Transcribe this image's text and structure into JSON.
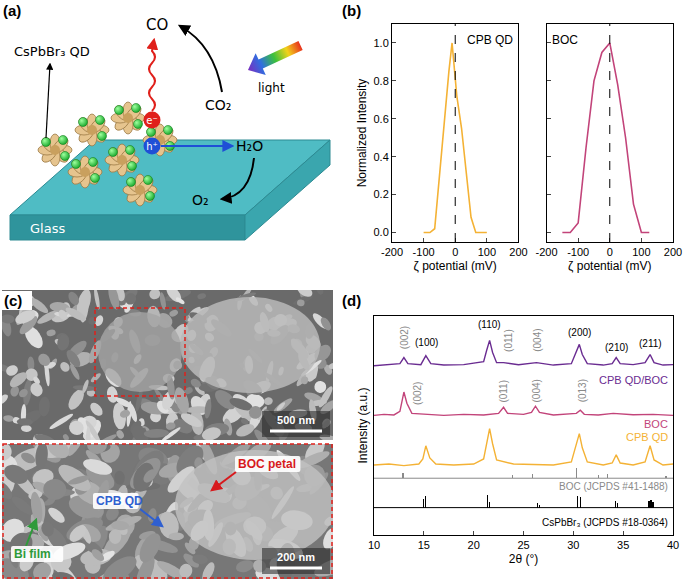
{
  "panel_a": {
    "label": "(a)",
    "texts": {
      "qd": "CsPbBr₃ QD",
      "co": "CO",
      "co2": "CO₂",
      "light": "light",
      "electron": "e⁻",
      "hole": "h⁺",
      "h2o": "H₂O",
      "o2": "O₂",
      "glass": "Glass"
    }
  },
  "chart_data": [
    {
      "type": "line",
      "panel_label": "(b)",
      "title": "CPB QD",
      "x": [
        -100,
        -80,
        -65,
        -50,
        -35,
        -20,
        -10,
        5,
        20,
        35,
        50,
        65,
        80,
        100
      ],
      "values": [
        0,
        0,
        0.02,
        0.3,
        0.55,
        0.85,
        1.0,
        0.72,
        0.55,
        0.32,
        0.08,
        0,
        0,
        0
      ],
      "color": "#f4b235",
      "xlabel": "ζ potential (mV)",
      "ylabel": "Normalized Intensity",
      "xlim": [
        -200,
        200
      ],
      "xticks": [
        -200,
        -100,
        0,
        100,
        200
      ],
      "ylim": [
        -0.05,
        1.1
      ],
      "yticks": [
        {
          "value": 0,
          "label": "0.0"
        },
        0.2,
        0.4,
        0.6,
        0.8,
        {
          "value": 1,
          "label": "1.0"
        }
      ],
      "ref_lines": [
        {
          "x": 0,
          "line_style": "dashed"
        }
      ]
    },
    {
      "type": "line",
      "title": "BOC",
      "x": [
        -150,
        -125,
        -100,
        -75,
        -50,
        -25,
        0,
        25,
        50,
        75,
        100,
        125
      ],
      "values": [
        0,
        0,
        0.05,
        0.45,
        0.8,
        0.95,
        1.0,
        0.78,
        0.5,
        0.15,
        0,
        0
      ],
      "color": "#c2447a",
      "xlabel": "ζ potential (mV)",
      "xlim": [
        -200,
        200
      ],
      "xticks": [
        -200,
        -100,
        0,
        100,
        200
      ],
      "ylim": [
        -0.05,
        1.1
      ],
      "yticks": [
        0,
        0.2,
        0.4,
        0.6,
        0.8,
        1
      ],
      "tick_labels": "x",
      "ref_lines": [
        {
          "x": 0,
          "line_style": "dashed"
        }
      ]
    },
    {
      "type": "line",
      "panel_label": "(d)",
      "xlabel": "2θ (°)",
      "ylabel": "Intensity (a.u.)",
      "xlim": [
        10,
        40
      ],
      "xticks": [
        10,
        15,
        20,
        25,
        30,
        35,
        40
      ],
      "ylim": [
        0,
        10.8
      ],
      "tick_labels": "x",
      "series": [
        {
          "name": "CPB QD/BOC",
          "color": "#6a2c91",
          "x": [
            10,
            11.5,
            12.6,
            13.0,
            13.4,
            14.7,
            15.2,
            15.7,
            17,
            19,
            21.0,
            21.3,
            21.6,
            21.9,
            22.3,
            23.0,
            24.5,
            26.3,
            28,
            29.8,
            30.3,
            30.6,
            30.9,
            31.4,
            33,
            33.9,
            34.3,
            34.7,
            36,
            37.2,
            37.7,
            38.1,
            39,
            40
          ],
          "values": [
            8.35,
            8.4,
            8.45,
            8.75,
            8.45,
            8.4,
            8.85,
            8.45,
            8.38,
            8.4,
            8.55,
            9.1,
            9.6,
            9.0,
            8.5,
            8.5,
            8.4,
            8.5,
            8.38,
            8.45,
            9.0,
            9.4,
            8.9,
            8.45,
            8.38,
            8.45,
            8.75,
            8.45,
            8.4,
            8.5,
            8.9,
            8.5,
            8.38,
            8.4
          ],
          "label_at": [
            39.7,
            7.65
          ]
        },
        {
          "name": "BOC",
          "color": "#c2447a",
          "x": [
            10,
            11,
            12,
            12.6,
            13.0,
            13.3,
            13.8,
            15,
            17,
            19,
            21,
            22.5,
            23.0,
            23.4,
            25,
            25.8,
            26.2,
            26.6,
            28,
            30.3,
            30.7,
            31.1,
            32.5,
            34,
            36,
            38,
            40
          ],
          "values": [
            5.9,
            5.95,
            5.92,
            6.1,
            7.05,
            6.5,
            6.0,
            5.95,
            5.9,
            5.95,
            5.92,
            6.0,
            6.3,
            6.0,
            5.95,
            6.05,
            6.35,
            6.05,
            5.92,
            6.0,
            6.15,
            5.95,
            5.92,
            6.0,
            5.93,
            5.95,
            5.9
          ],
          "label_at": [
            39.7,
            5.45
          ]
        },
        {
          "name": "CPB QD",
          "color": "#f4b235",
          "x": [
            10,
            11.5,
            13,
            14.5,
            14.9,
            15.2,
            15.6,
            16.2,
            18,
            20,
            21.0,
            21.3,
            21.6,
            21.9,
            22.3,
            24,
            26,
            28,
            29.8,
            30.3,
            30.6,
            30.9,
            31.4,
            33,
            33.9,
            34.3,
            34.7,
            36,
            37.2,
            37.7,
            38.1,
            39,
            40
          ],
          "values": [
            3.45,
            3.5,
            3.42,
            3.5,
            3.75,
            4.4,
            3.8,
            3.5,
            3.45,
            3.5,
            3.75,
            4.6,
            5.25,
            4.5,
            3.7,
            3.5,
            3.48,
            3.45,
            3.6,
            4.5,
            5.0,
            4.3,
            3.6,
            3.45,
            3.55,
            3.95,
            3.55,
            3.45,
            3.6,
            4.4,
            3.7,
            3.45,
            3.5
          ],
          "label_at": [
            39.7,
            4.85
          ]
        },
        {
          "name": "BOC (JCPDS #41-1488)",
          "type": "bar",
          "color": "#8a8a8a",
          "baseline": 2.8,
          "x": [
            12.9,
            23.9,
            25.9,
            30.3,
            32.5,
            33.4,
            39.3
          ],
          "values": [
            0.25,
            0.15,
            0.2,
            0.5,
            0.15,
            0.2,
            0.12
          ],
          "label_at": [
            39.7,
            2.4
          ]
        },
        {
          "name": "CsPbBr₃ (JCPDS #18-0364)",
          "type": "bar",
          "color": "#000000",
          "baseline": 1.35,
          "x": [
            15.0,
            15.2,
            21.4,
            21.6,
            26.4,
            26.6,
            30.4,
            30.7,
            34.2,
            34.4,
            37.6,
            37.8,
            38.0
          ],
          "values": [
            0.45,
            0.55,
            0.6,
            0.3,
            0.22,
            0.14,
            0.55,
            0.52,
            0.32,
            0.25,
            0.35,
            0.38,
            0.27
          ],
          "label_at": [
            39.7,
            0.6
          ]
        }
      ],
      "annotations": [
        {
          "text": "(002)",
          "x": 13.0,
          "y": 9.75,
          "color": "#8a8a8a"
        },
        {
          "text": "(100)",
          "x": 15.3,
          "y": 9.5,
          "color": "#000000"
        },
        {
          "text": "(110)",
          "x": 21.6,
          "y": 10.4,
          "color": "#000000"
        },
        {
          "text": "(011)",
          "x": 23.5,
          "y": 9.6,
          "color": "#8a8a8a"
        },
        {
          "text": "(004)",
          "x": 26.4,
          "y": 9.6,
          "color": "#8a8a8a"
        },
        {
          "text": "(200)",
          "x": 30.6,
          "y": 10.0,
          "color": "#000000"
        },
        {
          "text": "(210)",
          "x": 34.3,
          "y": 9.25,
          "color": "#000000"
        },
        {
          "text": "(211)",
          "x": 37.7,
          "y": 9.45,
          "color": "#000000"
        },
        {
          "text": "(002)",
          "x": 14.3,
          "y": 7.0,
          "color": "#8a8a8a"
        },
        {
          "text": "(011)",
          "x": 22.9,
          "y": 7.1,
          "color": "#8a8a8a"
        },
        {
          "text": "(004)",
          "x": 26.3,
          "y": 7.1,
          "color": "#8a8a8a"
        },
        {
          "text": "(013)",
          "x": 30.9,
          "y": 7.1,
          "color": "#8a8a8a"
        }
      ]
    }
  ],
  "panel_c": {
    "label": "(c)",
    "scale_top": "500 nm",
    "scale_inset": "200 nm",
    "labels": [
      {
        "text": "BOC petal",
        "color": "#d7191c"
      },
      {
        "text": "CPB QD",
        "color": "#2f5fd0"
      },
      {
        "text": "Bi film",
        "color": "#2e9a3a"
      }
    ]
  }
}
